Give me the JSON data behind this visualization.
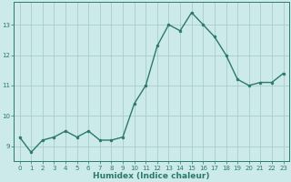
{
  "x": [
    0,
    1,
    2,
    3,
    4,
    5,
    6,
    7,
    8,
    9,
    10,
    11,
    12,
    13,
    14,
    15,
    16,
    17,
    18,
    19,
    20,
    21,
    22,
    23
  ],
  "y": [
    9.3,
    8.8,
    9.2,
    9.3,
    9.5,
    9.3,
    9.5,
    9.2,
    9.2,
    9.3,
    10.4,
    11.0,
    12.3,
    13.0,
    12.8,
    13.4,
    13.0,
    12.6,
    12.0,
    11.2,
    11.0,
    11.1,
    11.1,
    11.4
  ],
  "line_color": "#2a7a6a",
  "marker": "o",
  "marker_size": 2.0,
  "bg_color": "#cdeaea",
  "grid_color": "#a8cccc",
  "xlabel": "Humidex (Indice chaleur)",
  "xlim": [
    -0.5,
    23.5
  ],
  "ylim": [
    8.5,
    13.75
  ],
  "yticks": [
    9,
    10,
    11,
    12,
    13
  ],
  "xticks": [
    0,
    1,
    2,
    3,
    4,
    5,
    6,
    7,
    8,
    9,
    10,
    11,
    12,
    13,
    14,
    15,
    16,
    17,
    18,
    19,
    20,
    21,
    22,
    23
  ],
  "figsize": [
    3.2,
    2.0
  ],
  "dpi": 100,
  "tick_fontsize": 5.0,
  "xlabel_fontsize": 6.5,
  "linewidth": 1.0
}
